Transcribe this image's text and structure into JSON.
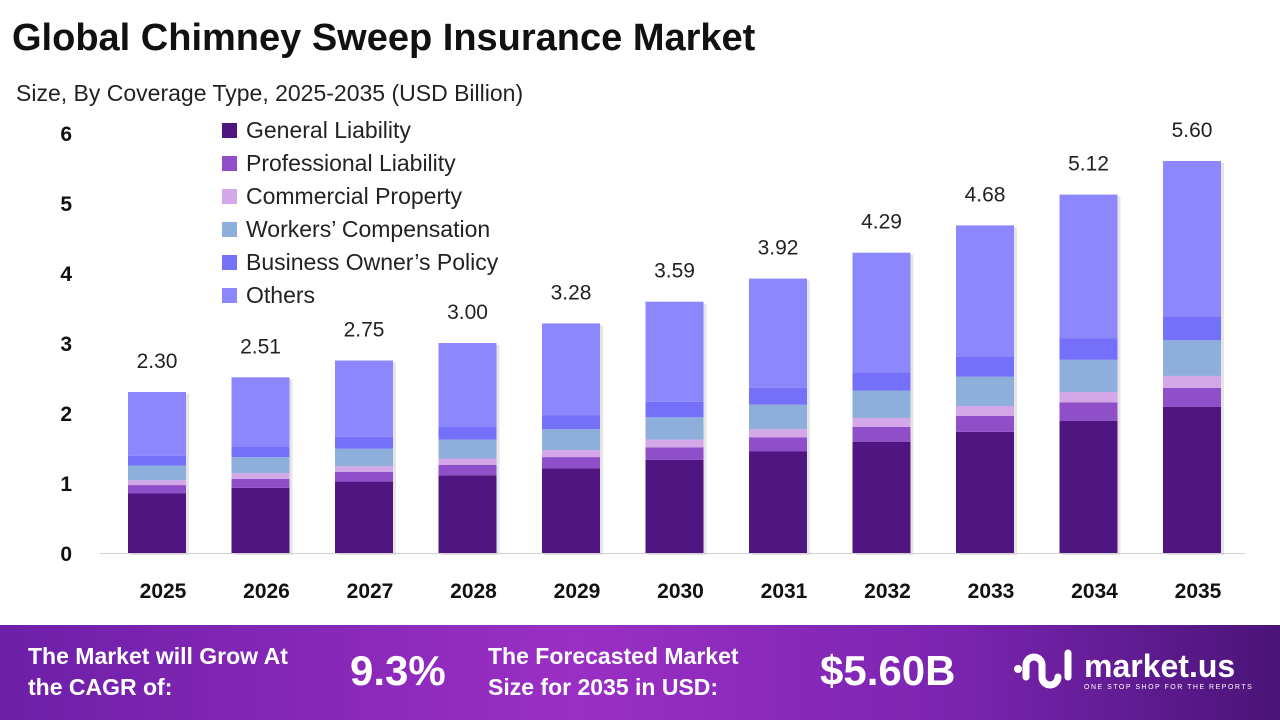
{
  "title": "Global Chimney Sweep Insurance Market",
  "subtitle": "Size, By Coverage Type, 2025-2035 (USD Billion)",
  "chart_data": {
    "type": "bar",
    "stacked": true,
    "categories": [
      "2025",
      "2026",
      "2027",
      "2028",
      "2029",
      "2030",
      "2031",
      "2032",
      "2033",
      "2034",
      "2035"
    ],
    "totals": [
      2.3,
      2.51,
      2.75,
      3.0,
      3.28,
      3.59,
      3.92,
      4.29,
      4.68,
      5.12,
      5.6
    ],
    "total_labels": [
      "2.30",
      "2.51",
      "2.75",
      "3.00",
      "3.28",
      "3.59",
      "3.92",
      "4.29",
      "4.68",
      "5.12",
      "5.60"
    ],
    "series": [
      {
        "name": "General Liability",
        "color": "#4f1580",
        "values": [
          0.85,
          0.93,
          1.02,
          1.11,
          1.21,
          1.33,
          1.45,
          1.59,
          1.73,
          1.89,
          2.09
        ]
      },
      {
        "name": "Professional Liability",
        "color": "#8e4fc9",
        "values": [
          0.12,
          0.13,
          0.14,
          0.15,
          0.16,
          0.18,
          0.2,
          0.21,
          0.23,
          0.26,
          0.27
        ]
      },
      {
        "name": "Commercial Property",
        "color": "#d4a8e8",
        "values": [
          0.07,
          0.08,
          0.08,
          0.09,
          0.1,
          0.11,
          0.12,
          0.13,
          0.14,
          0.15,
          0.17
        ]
      },
      {
        "name": "Workers’ Compensation",
        "color": "#8eaedc",
        "values": [
          0.21,
          0.23,
          0.25,
          0.27,
          0.3,
          0.32,
          0.35,
          0.39,
          0.42,
          0.46,
          0.51
        ]
      },
      {
        "name": "Business Owner’s Policy",
        "color": "#7570fa",
        "values": [
          0.14,
          0.15,
          0.17,
          0.18,
          0.2,
          0.22,
          0.24,
          0.26,
          0.28,
          0.31,
          0.34
        ]
      },
      {
        "name": "Others",
        "color": "#8c87fc",
        "values": [
          0.91,
          0.99,
          1.09,
          1.2,
          1.31,
          1.43,
          1.56,
          1.71,
          1.88,
          2.05,
          2.22
        ]
      }
    ],
    "yticks": [
      "0",
      "1",
      "2",
      "3",
      "4",
      "5",
      "6"
    ],
    "ylim": [
      0,
      6
    ],
    "grid": false,
    "legend_position": "top-left"
  },
  "banner": {
    "cagr_label": "The Market will Grow At the CAGR of:",
    "cagr_value": "9.3%",
    "forecast_label": "The Forecasted Market Size for 2035 in USD:",
    "forecast_value": "$5.60B",
    "logo_name": "market.us",
    "logo_tagline": "ONE STOP SHOP FOR THE REPORTS"
  }
}
